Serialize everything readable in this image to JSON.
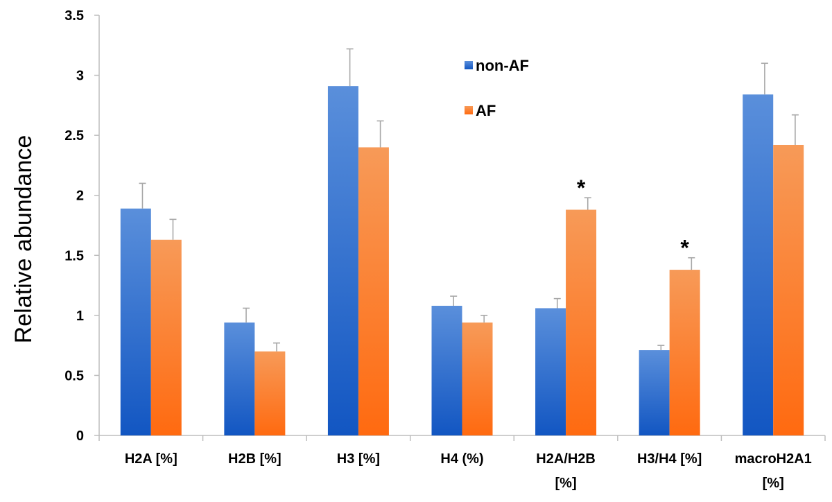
{
  "chart_data": {
    "type": "bar",
    "title": "",
    "xlabel": "",
    "ylabel": "Relative abundance",
    "ylim": [
      0,
      3.5
    ],
    "yticks": [
      0,
      0.5,
      1,
      1.5,
      2,
      2.5,
      3,
      3.5
    ],
    "ytick_labels": [
      "0",
      "0.5",
      "1",
      "1.5",
      "2",
      "2.5",
      "3",
      "3.5"
    ],
    "categories": [
      [
        "H2A  [%]"
      ],
      [
        "H2B  [%]"
      ],
      [
        "H3  [%]"
      ],
      [
        "H4  (%)"
      ],
      [
        "H2A/H2B",
        "[%]"
      ],
      [
        "H3/H4  [%]"
      ],
      [
        "macroH2A1",
        "[%]"
      ]
    ],
    "series": [
      {
        "name": "non-AF",
        "color": "#2f6cc8",
        "values": [
          1.89,
          0.94,
          2.91,
          1.08,
          1.06,
          0.71,
          2.84
        ],
        "errors": [
          0.21,
          0.12,
          0.31,
          0.08,
          0.08,
          0.04,
          0.26
        ]
      },
      {
        "name": "AF",
        "color": "#f57a2c",
        "values": [
          1.63,
          0.7,
          2.4,
          0.94,
          1.88,
          1.38,
          2.42
        ],
        "errors": [
          0.17,
          0.07,
          0.22,
          0.06,
          0.1,
          0.1,
          0.25
        ]
      }
    ],
    "annotations": [
      {
        "category_index": 4,
        "series_index": 1,
        "text": "*"
      },
      {
        "category_index": 5,
        "series_index": 1,
        "text": "*"
      }
    ],
    "legend": [
      {
        "label": "non-AF",
        "color": "#2f6cc8"
      },
      {
        "label": "AF",
        "color": "#f57a2c"
      }
    ],
    "legend_position": "top-center",
    "grid": false
  }
}
